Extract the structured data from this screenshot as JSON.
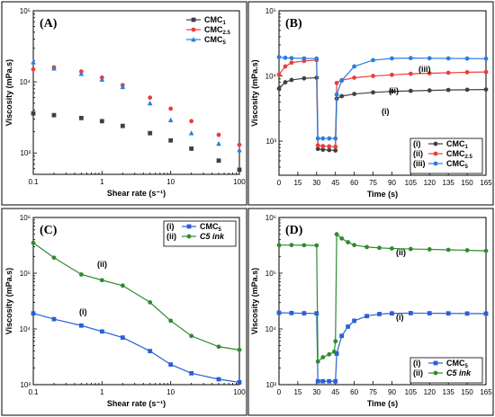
{
  "chart_data": [
    {
      "panel_label": "(A)",
      "type": "scatter",
      "xscale": "log",
      "yscale": "log",
      "xlim": [
        0.1,
        100
      ],
      "ylim": [
        500,
        100000
      ],
      "xlabel": "Shear rate (s⁻¹)",
      "ylabel": "Viscosity (mPa.s)",
      "xticks": [
        "0.1",
        "1",
        "10",
        "100"
      ],
      "yticks": [
        "10³",
        "10⁴",
        "10⁵"
      ],
      "legend": "top-right",
      "series": [
        {
          "name": "CMC",
          "sub": "1",
          "color": "#404040",
          "marker": "square",
          "x": [
            0.1,
            0.2,
            0.5,
            1,
            2,
            5,
            10,
            20,
            50,
            100
          ],
          "y": [
            3600,
            3400,
            3100,
            2800,
            2400,
            1900,
            1500,
            1150,
            780,
            580
          ]
        },
        {
          "name": "CMC",
          "sub": "2.5",
          "color": "#e8403a",
          "marker": "circle",
          "x": [
            0.1,
            0.2,
            0.5,
            1,
            2,
            5,
            10,
            20,
            50,
            100
          ],
          "y": [
            15000,
            16000,
            14000,
            11500,
            9000,
            6000,
            4200,
            2800,
            1800,
            1300
          ]
        },
        {
          "name": "CMC",
          "sub": "5",
          "color": "#2a7fe0",
          "marker": "triangle",
          "x": [
            0.1,
            0.2,
            0.5,
            1,
            2,
            5,
            10,
            20,
            50,
            100
          ],
          "y": [
            19000,
            15500,
            13000,
            10800,
            8500,
            5000,
            2900,
            1900,
            1350,
            1100
          ]
        }
      ]
    },
    {
      "panel_label": "(B)",
      "type": "line",
      "yscale": "log",
      "xlim": [
        0,
        165
      ],
      "ylim": [
        300,
        100000
      ],
      "xlabel": "Time (s)",
      "ylabel": "Viscosity (mPa.s)",
      "xticks": [
        "0",
        "15",
        "30",
        "45",
        "60",
        "75",
        "90",
        "105",
        "120",
        "135",
        "150",
        "165"
      ],
      "yticks": [
        "10³",
        "10⁴",
        "10⁵"
      ],
      "legend": "bottom-right",
      "annotations": [
        "(iii)",
        "(ii)",
        "(i)"
      ],
      "series": [
        {
          "name": "CMC",
          "sub": "1",
          "prefix": "(i)",
          "color": "#404040",
          "marker": "circle",
          "x": [
            0,
            5,
            10,
            20,
            30,
            31,
            35,
            40,
            45,
            46,
            50,
            60,
            75,
            90,
            105,
            120,
            135,
            150,
            165
          ],
          "y": [
            6400,
            8000,
            8700,
            9200,
            9400,
            760,
            740,
            730,
            720,
            4500,
            4900,
            5300,
            5600,
            5800,
            5900,
            6000,
            6100,
            6150,
            6200
          ]
        },
        {
          "name": "CMC",
          "sub": "2.5",
          "prefix": "(ii)",
          "color": "#e8403a",
          "marker": "circle",
          "x": [
            0,
            5,
            10,
            20,
            30,
            31,
            35,
            40,
            45,
            46,
            50,
            60,
            75,
            90,
            105,
            120,
            135,
            150,
            165
          ],
          "y": [
            10500,
            14000,
            16000,
            17000,
            17500,
            860,
            840,
            830,
            820,
            7800,
            8600,
            9400,
            10000,
            10400,
            10800,
            11000,
            11200,
            11400,
            11500
          ]
        },
        {
          "name": "CMC",
          "sub": "5",
          "prefix": "(iii)",
          "color": "#2a7fe0",
          "marker": "circle",
          "x": [
            0,
            5,
            10,
            20,
            30,
            31,
            35,
            40,
            45,
            46,
            50,
            60,
            75,
            90,
            105,
            120,
            135,
            150,
            165
          ],
          "y": [
            19500,
            19000,
            18800,
            18600,
            18500,
            1100,
            1100,
            1100,
            1100,
            5200,
            8500,
            14000,
            17500,
            18600,
            18800,
            18700,
            18600,
            18500,
            18400
          ]
        }
      ]
    },
    {
      "panel_label": "(C)",
      "type": "line",
      "xscale": "log",
      "yscale": "log",
      "xlim": [
        0.1,
        100
      ],
      "ylim": [
        1000,
        1000000
      ],
      "xlabel": "Shear rate (s⁻¹)",
      "ylabel": "Viscosity (mPa.s)",
      "xticks": [
        "0.1",
        "1",
        "10",
        "100"
      ],
      "yticks": [
        "10³",
        "10⁴",
        "10⁵",
        "10⁶"
      ],
      "legend": "top-right",
      "annotations": [
        "(ii)",
        "(i)"
      ],
      "series": [
        {
          "name": "CMC",
          "sub": "5",
          "prefix": "(i)",
          "color": "#2a5fd6",
          "marker": "square",
          "x": [
            0.1,
            0.2,
            0.5,
            1,
            2,
            5,
            10,
            20,
            50,
            100
          ],
          "y": [
            19000,
            15000,
            11500,
            9000,
            7000,
            4000,
            2300,
            1600,
            1250,
            1100
          ]
        },
        {
          "name": "C5 ink",
          "italic": true,
          "prefix": "(ii)",
          "color": "#2e8b2e",
          "marker": "circle",
          "x": [
            0.1,
            0.2,
            0.5,
            1,
            2,
            5,
            10,
            20,
            50,
            100
          ],
          "y": [
            350000,
            190000,
            95000,
            75000,
            60000,
            30000,
            14000,
            7500,
            4800,
            4200
          ]
        }
      ]
    },
    {
      "panel_label": "(D)",
      "type": "line",
      "yscale": "log",
      "xlim": [
        0,
        165
      ],
      "ylim": [
        1000,
        1000000
      ],
      "xlabel": "Time (s)",
      "ylabel": "Viscosity (mPa.s)",
      "xticks": [
        "0",
        "15",
        "30",
        "45",
        "60",
        "75",
        "90",
        "105",
        "120",
        "135",
        "150",
        "165"
      ],
      "yticks": [
        "10³",
        "10⁴",
        "10⁵",
        "10⁶"
      ],
      "legend": "bottom-right",
      "annotations": [
        "(ii)",
        "(i)"
      ],
      "series": [
        {
          "name": "CMC",
          "sub": "5",
          "prefix": "(i)",
          "color": "#2a5fd6",
          "marker": "square",
          "x": [
            0,
            10,
            20,
            30,
            31,
            35,
            40,
            45,
            46,
            50,
            55,
            60,
            70,
            80,
            90,
            105,
            120,
            135,
            150,
            165
          ],
          "y": [
            19500,
            19300,
            19100,
            19000,
            1150,
            1150,
            1150,
            1150,
            3600,
            7500,
            11000,
            14000,
            17000,
            18500,
            19000,
            19200,
            19100,
            19000,
            18900,
            18800
          ]
        },
        {
          "name": "C5 ink",
          "italic": true,
          "prefix": "(ii)",
          "color": "#2e8b2e",
          "marker": "circle",
          "x": [
            0,
            10,
            20,
            30,
            31,
            35,
            40,
            44,
            45,
            46,
            50,
            55,
            60,
            70,
            80,
            90,
            105,
            120,
            135,
            150,
            165
          ],
          "y": [
            320000,
            320000,
            318000,
            315000,
            2600,
            3100,
            3500,
            3900,
            6000,
            500000,
            420000,
            360000,
            320000,
            295000,
            285000,
            278000,
            272000,
            268000,
            263000,
            258000,
            252000
          ]
        }
      ]
    }
  ]
}
